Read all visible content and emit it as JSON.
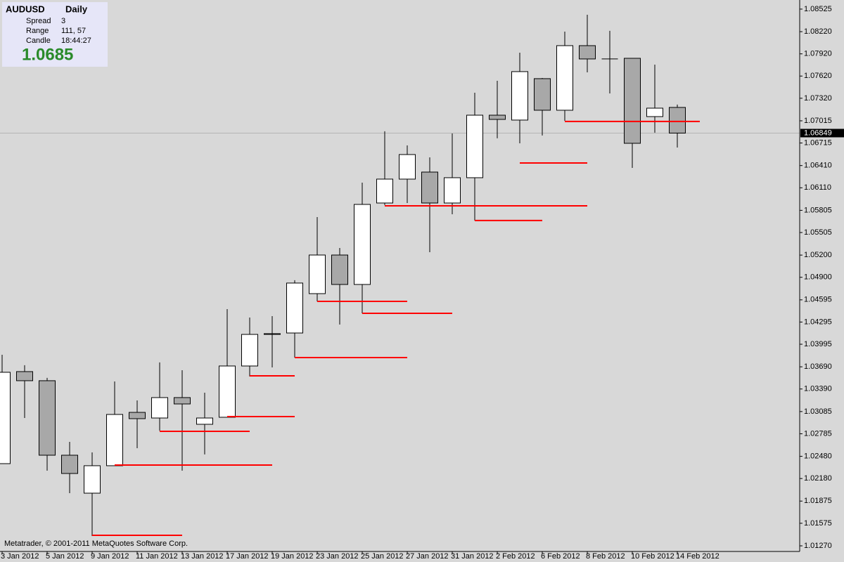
{
  "info_panel": {
    "symbol": "AUDUSD",
    "timeframe": "Daily",
    "spread_label": "Spread",
    "spread": 3,
    "range_label": "Range",
    "range": "111, 57",
    "candle_label": "Candle",
    "candle_time": "18:44:27",
    "bid": 1.0685
  },
  "copyright": "Metatrader, © 2001-2011 MetaQuotes Software Corp.",
  "chart_data": {
    "type": "candlestick",
    "categories": [
      "3 Jan 2012",
      null,
      "5 Jan 2012",
      null,
      "9 Jan 2012",
      null,
      "11 Jan 2012",
      null,
      "13 Jan 2012",
      null,
      "17 Jan 2012",
      null,
      "19 Jan 2012",
      null,
      "23 Jan 2012",
      null,
      "25 Jan 2012",
      null,
      "27 Jan 2012",
      null,
      "31 Jan 2012",
      null,
      "2 Feb 2012",
      null,
      "6 Feb 2012",
      null,
      "8 Feb 2012",
      null,
      "10 Feb 2012",
      null,
      "14 Feb 2012"
    ],
    "open": [
      1.02381,
      1.03625,
      1.03502,
      1.02495,
      1.01982,
      1.02353,
      1.03074,
      1.02998,
      1.03274,
      1.02913,
      1.03008,
      1.03701,
      1.04128,
      1.04147,
      1.04679,
      1.05201,
      1.04803,
      1.05904,
      1.06227,
      1.06322,
      1.05904,
      1.06246,
      1.07091,
      1.07025,
      1.07585,
      1.07158,
      1.08031,
      1.07851,
      1.0786,
      1.07072,
      1.07196
    ],
    "high": [
      1.03853,
      1.03711,
      1.0354,
      1.02675,
      1.02533,
      1.03492,
      1.03236,
      1.03749,
      1.03644,
      1.0334,
      1.0447,
      1.04356,
      1.04375,
      1.0486,
      1.05714,
      1.05296,
      1.06179,
      1.06873,
      1.06683,
      1.06521,
      1.06844,
      1.07395,
      1.07556,
      1.07936,
      1.07594,
      1.08221,
      1.08449,
      1.08231,
      1.0786,
      1.07775,
      1.07234
    ],
    "low": [
      1.02381,
      1.02998,
      1.02286,
      1.01982,
      1.01403,
      1.02353,
      1.0259,
      1.02827,
      1.02286,
      1.02505,
      1.03008,
      1.03559,
      1.03682,
      1.03815,
      1.04575,
      1.04261,
      1.04413,
      1.05876,
      1.05904,
      1.05239,
      1.05752,
      1.05667,
      1.06778,
      1.06711,
      1.06816,
      1.07015,
      1.0767,
      1.07385,
      1.06379,
      1.06854,
      1.06654
    ],
    "close": [
      1.03616,
      1.03502,
      1.02495,
      1.02248,
      1.02353,
      1.03046,
      1.02989,
      1.03274,
      1.03188,
      1.02998,
      1.03701,
      1.04128,
      1.04138,
      1.04822,
      1.05201,
      1.04803,
      1.05885,
      1.06227,
      1.06559,
      1.05904,
      1.06246,
      1.07091,
      1.07034,
      1.0768,
      1.07158,
      1.08031,
      1.07851,
      1.07851,
      1.06711,
      1.07186,
      1.06849
    ],
    "ylim": [
      1.01194,
      1.08648
    ],
    "yticks": [
      1.08525,
      {
        "value": 1.0822,
        "label": "1.08220"
      },
      {
        "value": 1.0792,
        "label": "1.07920"
      },
      {
        "value": 1.0762,
        "label": "1.07620"
      },
      {
        "value": 1.0732,
        "label": "1.07320"
      },
      1.07015,
      1.06715,
      {
        "value": 1.0641,
        "label": "1.06410"
      },
      {
        "value": 1.0611,
        "label": "1.06110"
      },
      1.05805,
      1.05505,
      {
        "value": 1.052,
        "label": "1.05200"
      },
      {
        "value": 1.049,
        "label": "1.04900"
      },
      1.04595,
      1.04295,
      1.03995,
      {
        "value": 1.0369,
        "label": "1.03690"
      },
      {
        "value": 1.0339,
        "label": "1.03390"
      },
      1.03085,
      1.02785,
      {
        "value": 1.0248,
        "label": "1.02480"
      },
      {
        "value": 1.0218,
        "label": "1.02180"
      },
      1.01875,
      1.01575,
      {
        "value": 1.0127,
        "label": "1.01270"
      }
    ],
    "current_price": 1.06849,
    "levels": [
      {
        "start": 4,
        "end": 8,
        "value": 1.01412
      },
      {
        "start": 5,
        "end": 12,
        "value": 1.02362
      },
      {
        "start": 7,
        "end": 11,
        "value": 1.02818
      },
      {
        "start": 10,
        "end": 13,
        "value": 1.03017
      },
      {
        "start": 11,
        "end": 13,
        "value": 1.03568
      },
      {
        "start": 13,
        "end": 18,
        "value": 1.03815
      },
      {
        "start": 14,
        "end": 18,
        "value": 1.04575
      },
      {
        "start": 16,
        "end": 20,
        "value": 1.04413
      },
      {
        "start": 17,
        "end": 26,
        "value": 1.05866
      },
      {
        "start": 21,
        "end": 24,
        "value": 1.05667
      },
      {
        "start": 23,
        "end": 26,
        "value": 1.06445
      },
      {
        "start": 25,
        "end": 31,
        "value": 1.07006
      }
    ],
    "colors": {
      "up": "#ffffff",
      "down": "#a8a8a8",
      "level": "#ff0000"
    }
  }
}
